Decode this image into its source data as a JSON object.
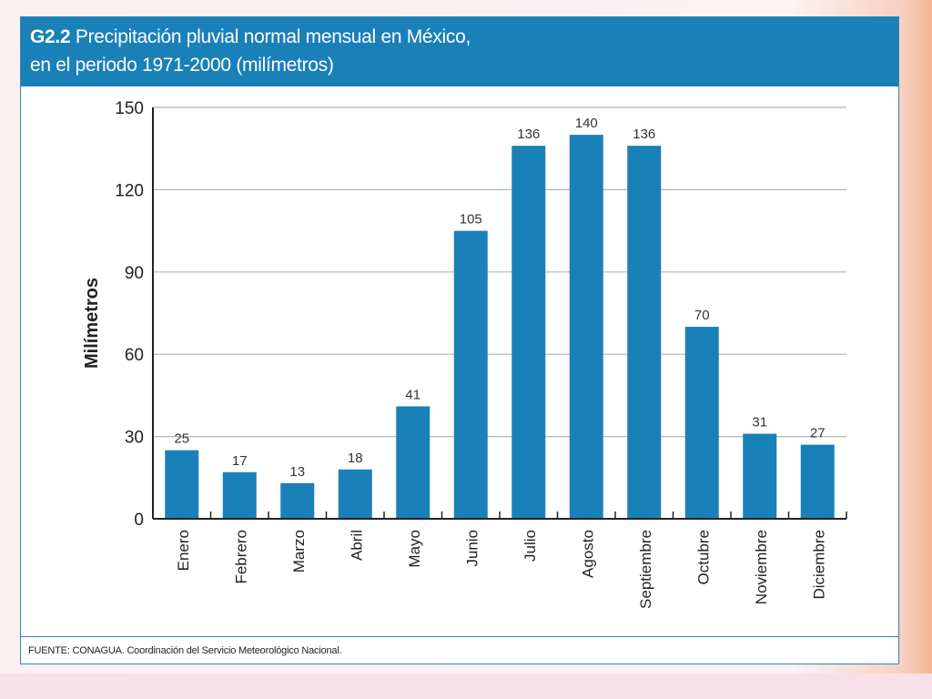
{
  "chart_data": {
    "type": "bar",
    "title_code": "G2.2",
    "title_line1": "Precipitación pluvial normal mensual en México,",
    "title_line2": "en el periodo 1971-2000 (milímetros)",
    "ylabel": "Milímetros",
    "xlabel": "",
    "ylim": [
      0,
      150
    ],
    "yticks": [
      0,
      30,
      60,
      90,
      120,
      150
    ],
    "ytick_labels": [
      "0",
      "30",
      "60",
      "90",
      "120",
      "150"
    ],
    "grid": true,
    "categories": [
      "Enero",
      "Febrero",
      "Marzo",
      "Abril",
      "Mayo",
      "Junio",
      "Julio",
      "Agosto",
      "Septiembre",
      "Octubre",
      "Noviembre",
      "Diciembre"
    ],
    "values": [
      25,
      17,
      13,
      18,
      41,
      105,
      136,
      140,
      136,
      70,
      31,
      27
    ],
    "data_labels": [
      "25",
      "17",
      "13",
      "18",
      "41",
      "105",
      "136",
      "140",
      "136",
      "70",
      "31",
      "27"
    ],
    "source": "FUENTE: CONAGUA. Coordinación del Servicio Meteorológico Nacional."
  },
  "colors": {
    "bar": "#1a80b8",
    "header": "#1a80b8",
    "grid": "#b5b5b5",
    "axis": "#222222"
  }
}
